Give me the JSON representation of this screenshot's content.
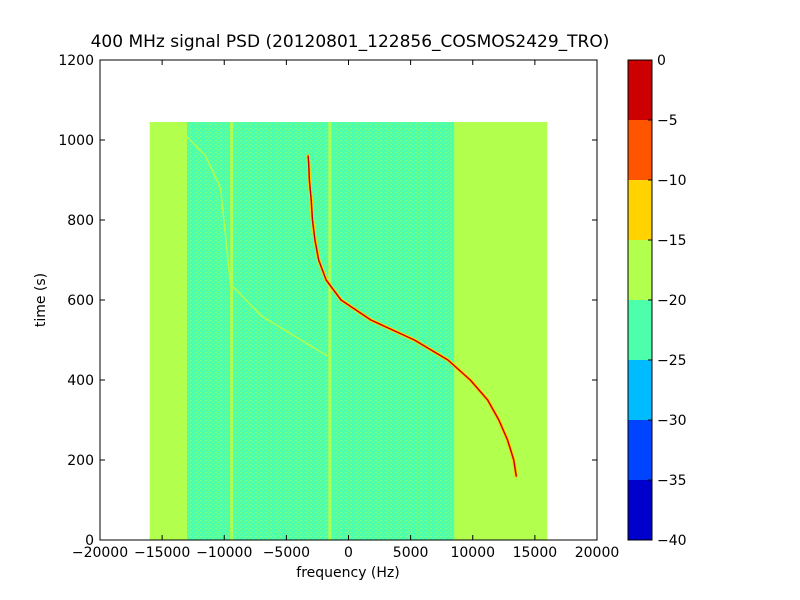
{
  "chart_data": {
    "type": "heatmap",
    "title": "400 MHz signal PSD (20120801_122856_COSMOS2429_TRO)",
    "xlabel": "frequency (Hz)",
    "ylabel": "time (s)",
    "xlim": [
      -20000,
      20000
    ],
    "ylim": [
      0,
      1200
    ],
    "xticks": [
      -20000,
      -15000,
      -10000,
      -5000,
      0,
      5000,
      10000,
      15000,
      20000
    ],
    "xtick_labels": [
      "−20000",
      "−15000",
      "−10000",
      "−5000",
      "0",
      "5000",
      "10000",
      "15000",
      "20000"
    ],
    "yticks": [
      0,
      200,
      400,
      600,
      800,
      1000,
      1200
    ],
    "ytick_labels": [
      "0",
      "200",
      "400",
      "600",
      "800",
      "1000",
      "1200"
    ],
    "data_extent": {
      "x": [
        -16000,
        16000
      ],
      "y": [
        0,
        1045
      ]
    },
    "background_level": -17,
    "colorbar": {
      "range": [
        -40,
        0
      ],
      "ticks": [
        0,
        -5,
        -10,
        -15,
        -20,
        -25,
        -30,
        -35,
        -40
      ],
      "tick_labels": [
        "0",
        "−5",
        "−10",
        "−15",
        "−20",
        "−25",
        "−30",
        "−35",
        "−40"
      ],
      "levels": [
        {
          "from": -40,
          "to": -35,
          "color": "#0000cc"
        },
        {
          "from": -35,
          "to": -30,
          "color": "#0044ff"
        },
        {
          "from": -30,
          "to": -25,
          "color": "#00bbff"
        },
        {
          "from": -25,
          "to": -20,
          "color": "#4dffaa"
        },
        {
          "from": -20,
          "to": -15,
          "color": "#b2ff4d"
        },
        {
          "from": -15,
          "to": -10,
          "color": "#ffd200"
        },
        {
          "from": -10,
          "to": -5,
          "color": "#ff5500"
        },
        {
          "from": -5,
          "to": 0,
          "color": "#cc0000"
        }
      ]
    },
    "noise_bands": [
      {
        "x": [
          -13000,
          -10800
        ],
        "level": -20.5
      },
      {
        "x": [
          -10800,
          -6800
        ],
        "level": -22
      },
      {
        "x": [
          -6800,
          -1200
        ],
        "level": -23
      },
      {
        "x": [
          -1200,
          5500
        ],
        "level": -22
      },
      {
        "x": [
          5500,
          8500
        ],
        "level": -20.5
      }
    ],
    "vertical_lines": [
      {
        "x": -9400,
        "y": [
          0,
          1045
        ],
        "level": -16
      },
      {
        "x": -1500,
        "y": [
          0,
          1045
        ],
        "level": -17
      }
    ],
    "doppler_trace": {
      "name": "",
      "level": -2,
      "points": [
        {
          "t": 160,
          "f": 13500
        },
        {
          "t": 200,
          "f": 13300
        },
        {
          "t": 250,
          "f": 12800
        },
        {
          "t": 300,
          "f": 12100
        },
        {
          "t": 350,
          "f": 11200
        },
        {
          "t": 400,
          "f": 9800
        },
        {
          "t": 450,
          "f": 8000
        },
        {
          "t": 500,
          "f": 5300
        },
        {
          "t": 550,
          "f": 1800
        },
        {
          "t": 600,
          "f": -600
        },
        {
          "t": 650,
          "f": -1800
        },
        {
          "t": 700,
          "f": -2400
        },
        {
          "t": 750,
          "f": -2700
        },
        {
          "t": 800,
          "f": -2900
        },
        {
          "t": 850,
          "f": -3000
        },
        {
          "t": 900,
          "f": -3150
        },
        {
          "t": 940,
          "f": -3200
        },
        {
          "t": 960,
          "f": -3250
        }
      ]
    },
    "faint_traces": [
      {
        "level": -17,
        "points": [
          {
            "t": 1040,
            "f": -14000
          },
          {
            "t": 960,
            "f": -11500
          },
          {
            "t": 880,
            "f": -10300
          },
          {
            "t": 640,
            "f": -9500
          },
          {
            "t": 560,
            "f": -7000
          },
          {
            "t": 460,
            "f": -1700
          }
        ]
      }
    ]
  }
}
